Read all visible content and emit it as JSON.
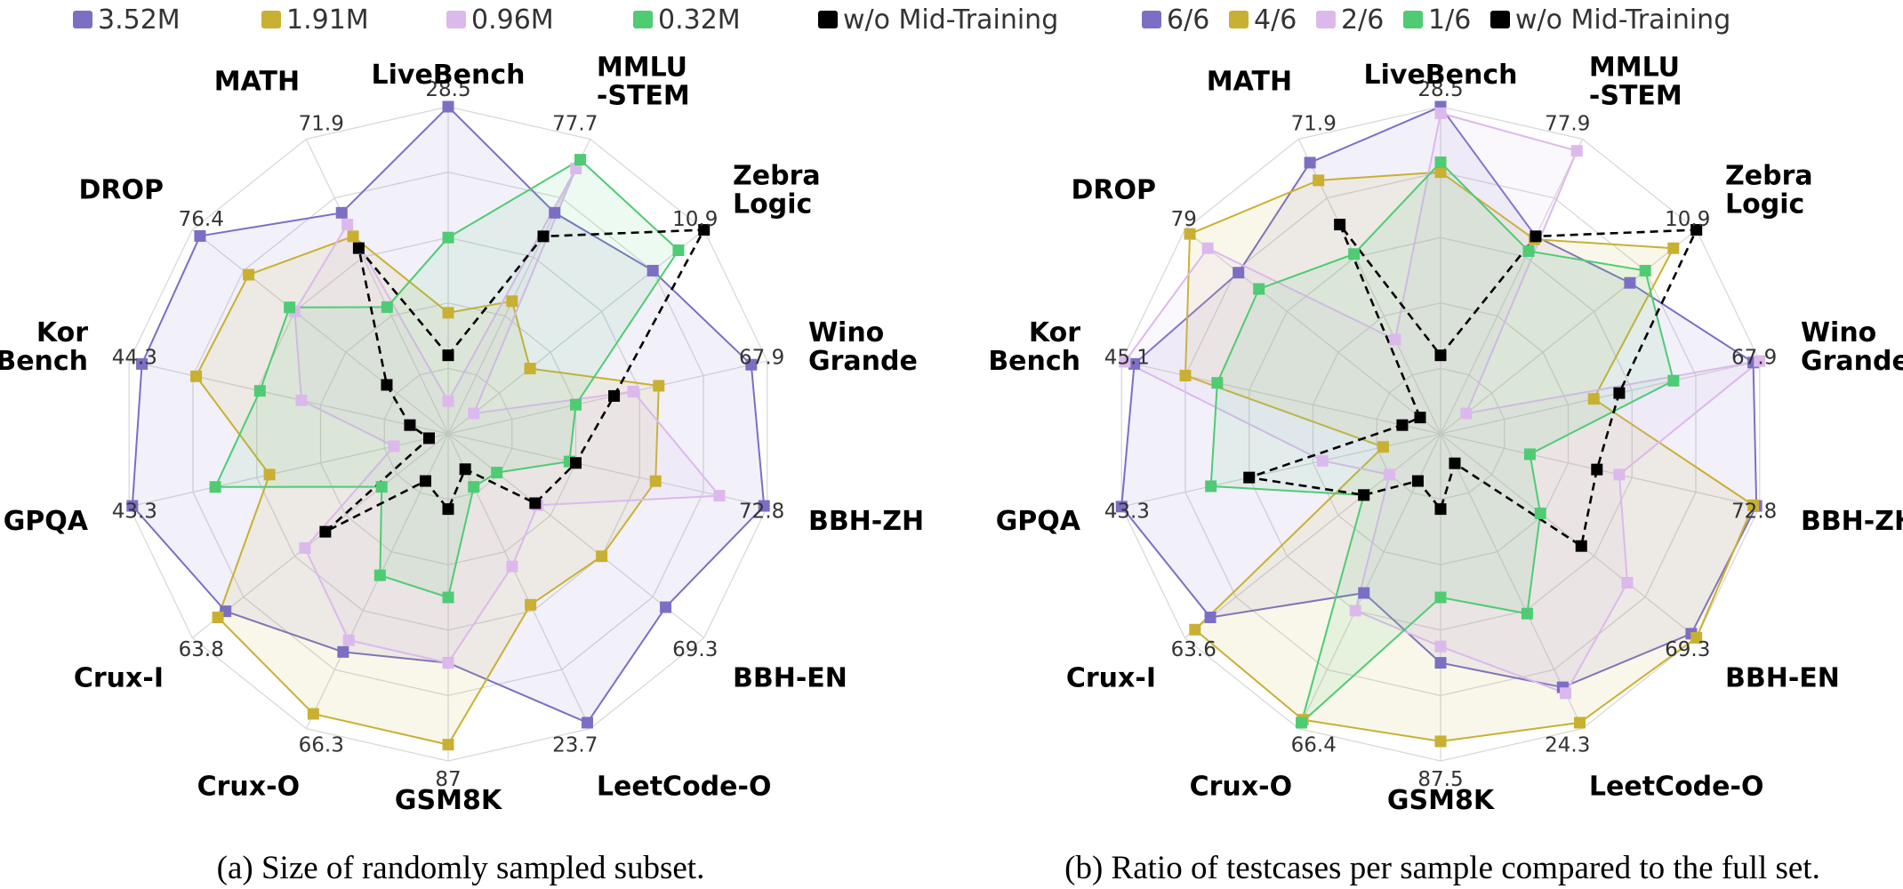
{
  "chart_data": [
    {
      "type": "radar",
      "caption": "(a) Size of randomly sampled subset.",
      "axes": [
        "LiveBench",
        "MMLU\n-STEM",
        "Zebra\nLogic",
        "Wino\nGrande",
        "BBH-ZH",
        "BBH-EN",
        "LeetCode-O",
        "GSM8K",
        "Crux-O",
        "Crux-I",
        "GPQA",
        "Kor\nBench",
        "DROP",
        "MATH"
      ],
      "axis_max_labels": [
        "28.5",
        "77.7",
        "10.9",
        "67.9",
        "72.8",
        "69.3",
        "23.7",
        "87",
        "66.3",
        "63.8",
        "43.3",
        "44.3",
        "76.4",
        "71.9"
      ],
      "value_scale": "fraction of axis maximum",
      "series": [
        {
          "name": "3.52M",
          "color": "#7b6fc4",
          "values": [
            1.0,
            0.75,
            0.8,
            0.95,
            0.99,
            0.85,
            0.98,
            0.7,
            0.74,
            0.87,
            0.99,
            0.96,
            0.97,
            0.75
          ]
        },
        {
          "name": "1.91M",
          "color": "#c9b033",
          "values": [
            0.37,
            0.45,
            0.32,
            0.66,
            0.65,
            0.6,
            0.58,
            0.95,
            0.95,
            0.9,
            0.56,
            0.79,
            0.78,
            0.67
          ]
        },
        {
          "name": "0.96M",
          "color": "#dcb9ec",
          "values": [
            0.1,
            0.9,
            0.1,
            0.58,
            0.85,
            0.35,
            0.45,
            0.7,
            0.7,
            0.56,
            0.17,
            0.46,
            0.6,
            0.71
          ]
        },
        {
          "name": "0.32M",
          "color": "#4fcb74",
          "values": [
            0.6,
            0.93,
            0.9,
            0.4,
            0.38,
            0.19,
            0.18,
            0.5,
            0.48,
            0.26,
            0.73,
            0.59,
            0.62,
            0.43
          ]
        },
        {
          "name": "w/o Mid-Training",
          "color": "#000000",
          "dashed": true,
          "values": [
            0.24,
            0.67,
            1.0,
            0.52,
            0.4,
            0.34,
            0.12,
            0.23,
            0.16,
            0.48,
            0.06,
            0.12,
            0.24,
            0.63
          ]
        }
      ]
    },
    {
      "type": "radar",
      "caption": "(b) Ratio of testcases per sample compared to the full set.",
      "axes": [
        "LiveBench",
        "MMLU\n-STEM",
        "Zebra\nLogic",
        "Wino\nGrande",
        "BBH-ZH",
        "BBH-EN",
        "LeetCode-O",
        "GSM8K",
        "Crux-O",
        "Crux-I",
        "GPQA",
        "Kor\nBench",
        "DROP",
        "MATH"
      ],
      "axis_max_labels": [
        "28.5",
        "77.9",
        "10.9",
        "67.9",
        "72.8",
        "69.3",
        "24.3",
        "87.5",
        "66.4",
        "63.6",
        "43.3",
        "45.1",
        "79",
        "71.9"
      ],
      "value_scale": "fraction of axis maximum",
      "series": [
        {
          "name": "6/6",
          "color": "#7b6fc4",
          "values": [
            1.0,
            0.67,
            0.74,
            0.98,
            0.99,
            0.98,
            0.86,
            0.7,
            0.54,
            0.9,
            1.0,
            0.96,
            0.79,
            0.92
          ]
        },
        {
          "name": "4/6",
          "color": "#c9b033",
          "values": [
            0.8,
            0.66,
            0.91,
            0.48,
            0.98,
            1.0,
            0.98,
            0.94,
            0.97,
            0.96,
            0.18,
            0.8,
            0.98,
            0.86
          ]
        },
        {
          "name": "2/6",
          "color": "#dcb9ec",
          "values": [
            0.98,
            0.96,
            0.1,
            1.0,
            0.56,
            0.73,
            0.88,
            0.65,
            0.6,
            0.2,
            0.37,
            0.99,
            0.91,
            0.32
          ]
        },
        {
          "name": "1/6",
          "color": "#4fcb74",
          "values": [
            0.83,
            0.62,
            0.8,
            0.73,
            0.28,
            0.39,
            0.61,
            0.5,
            0.98,
            0.3,
            0.72,
            0.7,
            0.71,
            0.61
          ]
        },
        {
          "name": "w/o Mid-Training",
          "color": "#000000",
          "dashed": true,
          "values": [
            0.24,
            0.67,
            1.0,
            0.56,
            0.49,
            0.55,
            0.1,
            0.23,
            0.16,
            0.3,
            0.6,
            0.12,
            0.08,
            0.71
          ]
        }
      ]
    }
  ]
}
